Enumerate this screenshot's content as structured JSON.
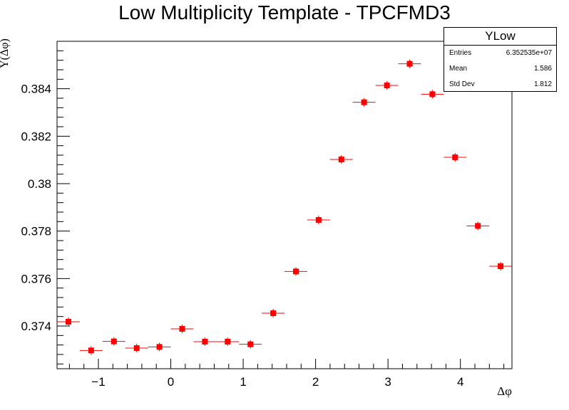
{
  "chart_data": {
    "type": "scatter",
    "title": "Low Multiplicity Template - TPCFMD3",
    "xlabel": "Δφ",
    "ylabel": "Y(Δφ)",
    "xlim": [
      -1.571,
      4.712
    ],
    "ylim": [
      0.3722,
      0.386
    ],
    "x_ticks": [
      -1,
      0,
      1,
      2,
      3,
      4
    ],
    "x_tick_labels": [
      "−1",
      "0",
      "1",
      "2",
      "3",
      "4"
    ],
    "y_ticks": [
      0.374,
      0.376,
      0.378,
      0.38,
      0.382,
      0.384
    ],
    "y_tick_labels": [
      "0.374",
      "0.376",
      "0.378",
      "0.38",
      "0.382",
      "0.384"
    ],
    "grid": false,
    "series": [
      {
        "marker_color": "#ff0000",
        "x": [
          -1.414,
          -1.1,
          -0.785,
          -0.471,
          -0.157,
          0.157,
          0.471,
          0.785,
          1.1,
          1.414,
          1.728,
          2.042,
          2.356,
          2.67,
          2.985,
          3.299,
          3.613,
          3.927,
          4.241,
          4.555
        ],
        "y": [
          0.37418,
          0.37297,
          0.37335,
          0.37307,
          0.37312,
          0.37388,
          0.37334,
          0.37334,
          0.37323,
          0.37454,
          0.3763,
          0.37847,
          0.38102,
          0.38343,
          0.38414,
          0.38505,
          0.38377,
          0.38111,
          0.37822,
          0.37652
        ],
        "x_err": 0.157,
        "y_err": [
          9e-05,
          9e-05,
          9e-05,
          9e-05,
          9e-05,
          9e-05,
          9e-05,
          9e-05,
          9e-05,
          9e-05,
          9e-05,
          9e-05,
          9e-05,
          9e-05,
          9e-05,
          9e-05,
          9e-05,
          9e-05,
          9e-05,
          9e-05
        ]
      }
    ]
  },
  "statbox": {
    "title": "YLow",
    "rows": [
      {
        "key": "Entries",
        "value": "6.352535e+07"
      },
      {
        "key": "Mean",
        "value": "1.586"
      },
      {
        "key": "Std Dev",
        "value": "1.812"
      }
    ]
  }
}
